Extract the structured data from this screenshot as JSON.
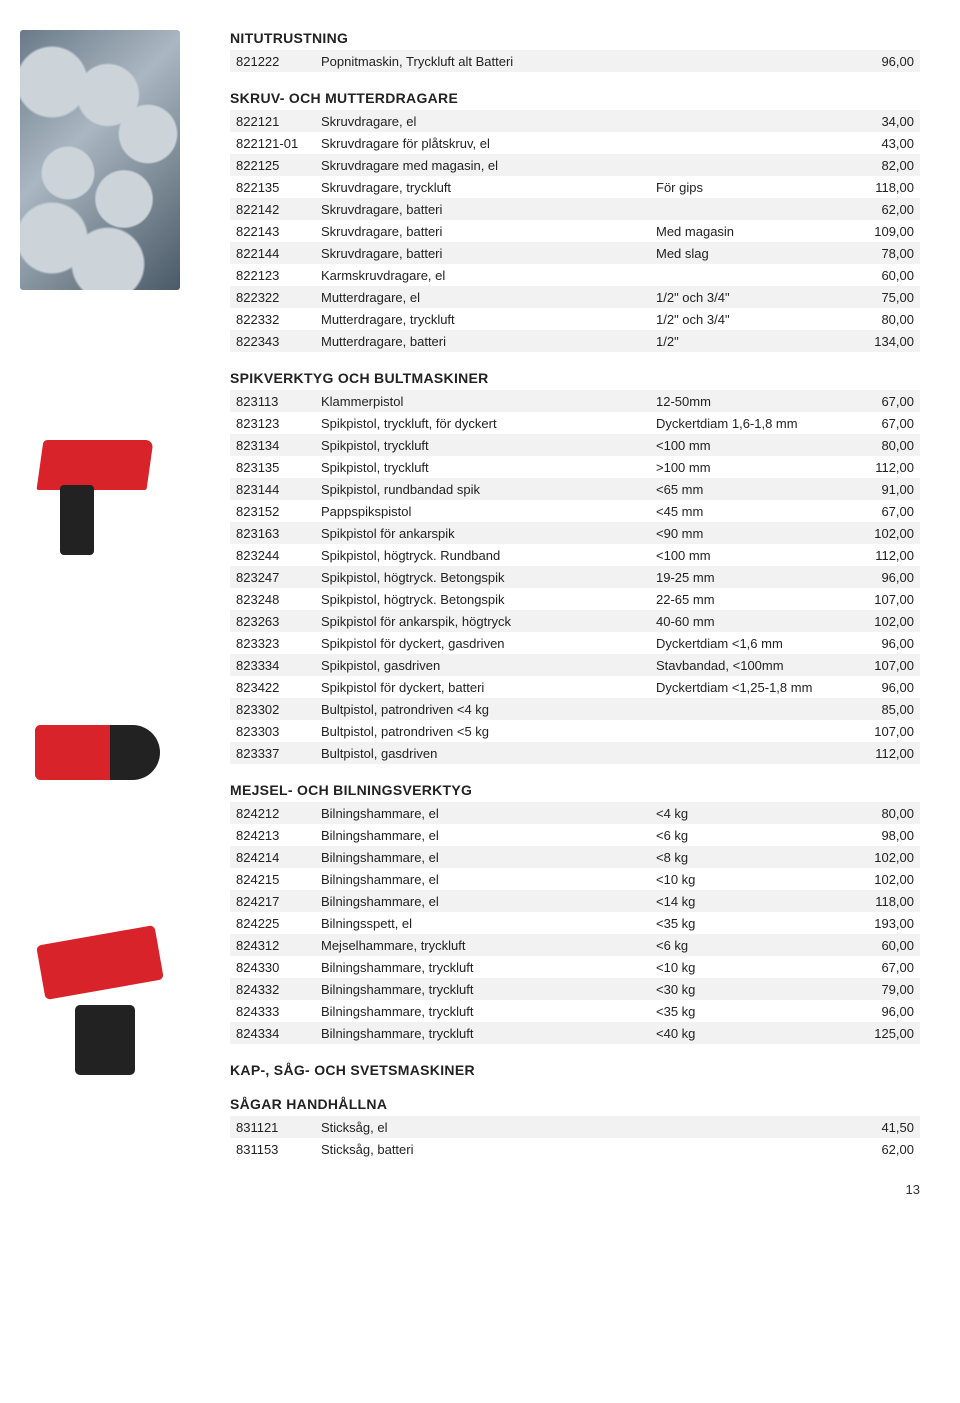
{
  "pageNumber": "13",
  "sections": [
    {
      "title": "NITUTRUSTNING",
      "rows": [
        {
          "code": "821222",
          "desc": "Popnitmaskin, Tryckluft alt Batteri",
          "spec": "",
          "price": "96,00"
        }
      ]
    },
    {
      "title": "SKRUV- OCH MUTTERDRAGARE",
      "rows": [
        {
          "code": "822121",
          "desc": "Skruvdragare, el",
          "spec": "",
          "price": "34,00"
        },
        {
          "code": "822121-01",
          "desc": "Skruvdragare för plåtskruv, el",
          "spec": "",
          "price": "43,00"
        },
        {
          "code": "822125",
          "desc": "Skruvdragare med magasin, el",
          "spec": "",
          "price": "82,00"
        },
        {
          "code": "822135",
          "desc": "Skruvdragare, tryckluft",
          "spec": "För gips",
          "price": "118,00"
        },
        {
          "code": "822142",
          "desc": "Skruvdragare, batteri",
          "spec": "",
          "price": "62,00"
        },
        {
          "code": "822143",
          "desc": "Skruvdragare, batteri",
          "spec": "Med magasin",
          "price": "109,00"
        },
        {
          "code": "822144",
          "desc": "Skruvdragare, batteri",
          "spec": "Med slag",
          "price": "78,00"
        },
        {
          "code": "822123",
          "desc": "Karmskruvdragare, el",
          "spec": "",
          "price": "60,00"
        },
        {
          "code": "822322",
          "desc": "Mutterdragare, el",
          "spec": "1/2\" och 3/4\"",
          "price": "75,00"
        },
        {
          "code": "822332",
          "desc": "Mutterdragare, tryckluft",
          "spec": "1/2\" och 3/4\"",
          "price": "80,00"
        },
        {
          "code": "822343",
          "desc": "Mutterdragare, batteri",
          "spec": "1/2\"",
          "price": "134,00"
        }
      ]
    },
    {
      "title": "SPIKVERKTYG OCH BULTMASKINER",
      "rows": [
        {
          "code": "823113",
          "desc": "Klammerpistol",
          "spec": "12-50mm",
          "price": "67,00"
        },
        {
          "code": "823123",
          "desc": "Spikpistol, tryckluft, för dyckert",
          "spec": "Dyckertdiam 1,6-1,8 mm",
          "price": "67,00"
        },
        {
          "code": "823134",
          "desc": "Spikpistol, tryckluft",
          "spec": "<100 mm",
          "price": "80,00"
        },
        {
          "code": "823135",
          "desc": "Spikpistol, tryckluft",
          "spec": ">100 mm",
          "price": "112,00"
        },
        {
          "code": "823144",
          "desc": "Spikpistol, rundbandad spik",
          "spec": "<65 mm",
          "price": "91,00"
        },
        {
          "code": "823152",
          "desc": "Pappspikspistol",
          "spec": "<45 mm",
          "price": "67,00"
        },
        {
          "code": "823163",
          "desc": "Spikpistol för ankarspik",
          "spec": "<90 mm",
          "price": "102,00"
        },
        {
          "code": "823244",
          "desc": "Spikpistol, högtryck. Rundband",
          "spec": "<100 mm",
          "price": "112,00"
        },
        {
          "code": "823247",
          "desc": "Spikpistol, högtryck. Betongspik",
          "spec": "19-25 mm",
          "price": "96,00"
        },
        {
          "code": "823248",
          "desc": "Spikpistol, högtryck. Betongspik",
          "spec": "22-65 mm",
          "price": "107,00"
        },
        {
          "code": "823263",
          "desc": "Spikpistol för ankarspik, högtryck",
          "spec": "40-60 mm",
          "price": "102,00"
        },
        {
          "code": "823323",
          "desc": "Spikpistol för dyckert, gasdriven",
          "spec": "Dyckertdiam <1,6 mm",
          "price": "96,00"
        },
        {
          "code": "823334",
          "desc": "Spikpistol, gasdriven",
          "spec": "Stavbandad, <100mm",
          "price": "107,00"
        },
        {
          "code": "823422",
          "desc": "Spikpistol för dyckert, batteri",
          "spec": "Dyckertdiam <1,25-1,8 mm",
          "price": "96,00"
        },
        {
          "code": "823302",
          "desc": "Bultpistol, patrondriven <4 kg",
          "spec": "",
          "price": "85,00"
        },
        {
          "code": "823303",
          "desc": "Bultpistol, patrondriven <5 kg",
          "spec": "",
          "price": "107,00"
        },
        {
          "code": "823337",
          "desc": "Bultpistol, gasdriven",
          "spec": "",
          "price": "112,00"
        }
      ]
    },
    {
      "title": "MEJSEL- OCH BILNINGSVERKTYG",
      "rows": [
        {
          "code": "824212",
          "desc": "Bilningshammare, el",
          "spec": "<4 kg",
          "price": "80,00"
        },
        {
          "code": "824213",
          "desc": "Bilningshammare, el",
          "spec": "<6 kg",
          "price": "98,00"
        },
        {
          "code": "824214",
          "desc": "Bilningshammare, el",
          "spec": "<8 kg",
          "price": "102,00"
        },
        {
          "code": "824215",
          "desc": "Bilningshammare, el",
          "spec": "<10 kg",
          "price": "102,00"
        },
        {
          "code": "824217",
          "desc": "Bilningshammare, el",
          "spec": "<14 kg",
          "price": "118,00"
        },
        {
          "code": "824225",
          "desc": "Bilningsspett, el",
          "spec": "<35 kg",
          "price": "193,00"
        },
        {
          "code": "824312",
          "desc": "Mejselhammare, tryckluft",
          "spec": "<6 kg",
          "price": "60,00"
        },
        {
          "code": "824330",
          "desc": "Bilningshammare, tryckluft",
          "spec": "<10 kg",
          "price": "67,00"
        },
        {
          "code": "824332",
          "desc": "Bilningshammare, tryckluft",
          "spec": "<30 kg",
          "price": "79,00"
        },
        {
          "code": "824333",
          "desc": "Bilningshammare, tryckluft",
          "spec": "<35 kg",
          "price": "96,00"
        },
        {
          "code": "824334",
          "desc": "Bilningshammare, tryckluft",
          "spec": "<40 kg",
          "price": "125,00"
        }
      ]
    },
    {
      "title": "KAP-, SÅG- OCH SVETSMASKINER",
      "rows": []
    },
    {
      "title": "SÅGAR HANDHÅLLNA",
      "rows": [
        {
          "code": "831121",
          "desc": "Sticksåg, el",
          "spec": "",
          "price": "41,50"
        },
        {
          "code": "831153",
          "desc": "Sticksåg, batteri",
          "spec": "",
          "price": "62,00"
        }
      ]
    }
  ],
  "colors": {
    "zebra": "#f2f2f2",
    "text": "#222222",
    "accentRed": "#d8232a"
  }
}
